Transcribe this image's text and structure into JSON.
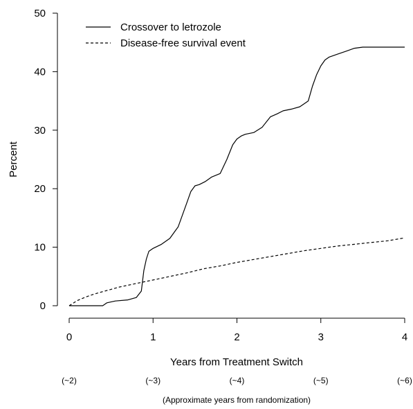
{
  "chart_data": {
    "type": "line",
    "xlabel": "Years from Treatment Switch",
    "ylabel": "Percent",
    "secondary_xlabel": "(Approximate years from randomization)",
    "xlim": [
      0,
      4
    ],
    "ylim": [
      0,
      50
    ],
    "x_ticks": [
      0,
      1,
      2,
      3,
      4
    ],
    "y_ticks": [
      0,
      10,
      20,
      30,
      40,
      50
    ],
    "secondary_x_ticks": [
      "(~2)",
      "(~3)",
      "(~4)",
      "(~5)",
      "(~6)"
    ],
    "grid": false,
    "legend_position": "top-left",
    "series": [
      {
        "name": "Crossover to letrozole",
        "line_style": "solid",
        "color": "#000000",
        "x": [
          0,
          0.4,
          0.45,
          0.55,
          0.7,
          0.8,
          0.86,
          0.89,
          0.92,
          0.95,
          1.0,
          1.1,
          1.2,
          1.3,
          1.4,
          1.45,
          1.5,
          1.55,
          1.62,
          1.7,
          1.8,
          1.88,
          1.95,
          2.0,
          2.05,
          2.1,
          2.2,
          2.3,
          2.4,
          2.48,
          2.55,
          2.65,
          2.75,
          2.85,
          2.9,
          2.95,
          3.0,
          3.05,
          3.1,
          3.2,
          3.3,
          3.4,
          3.5,
          3.7,
          3.9,
          4.0
        ],
        "values": [
          0,
          0,
          0.5,
          0.8,
          1.0,
          1.4,
          2.5,
          6.0,
          8.0,
          9.3,
          9.8,
          10.5,
          11.5,
          13.5,
          17.5,
          19.5,
          20.5,
          20.7,
          21.2,
          22.0,
          22.6,
          25.0,
          27.5,
          28.5,
          29.0,
          29.3,
          29.6,
          30.5,
          32.3,
          32.8,
          33.3,
          33.6,
          34.0,
          35.0,
          37.5,
          39.5,
          41.0,
          42.0,
          42.5,
          43.0,
          43.5,
          44.0,
          44.2,
          44.2,
          44.2,
          44.2
        ]
      },
      {
        "name": "Disease-free survival event",
        "line_style": "dashed",
        "color": "#000000",
        "x": [
          0,
          0.1,
          0.2,
          0.3,
          0.4,
          0.5,
          0.6,
          0.7,
          0.8,
          0.9,
          1.0,
          1.2,
          1.4,
          1.6,
          1.8,
          2.0,
          2.2,
          2.4,
          2.6,
          2.8,
          3.0,
          3.2,
          3.4,
          3.6,
          3.8,
          4.0
        ],
        "values": [
          0,
          0.9,
          1.5,
          2.0,
          2.4,
          2.8,
          3.2,
          3.5,
          3.8,
          4.1,
          4.4,
          5.0,
          5.6,
          6.3,
          6.8,
          7.4,
          7.9,
          8.4,
          8.9,
          9.4,
          9.8,
          10.2,
          10.5,
          10.8,
          11.1,
          11.6
        ]
      }
    ]
  }
}
